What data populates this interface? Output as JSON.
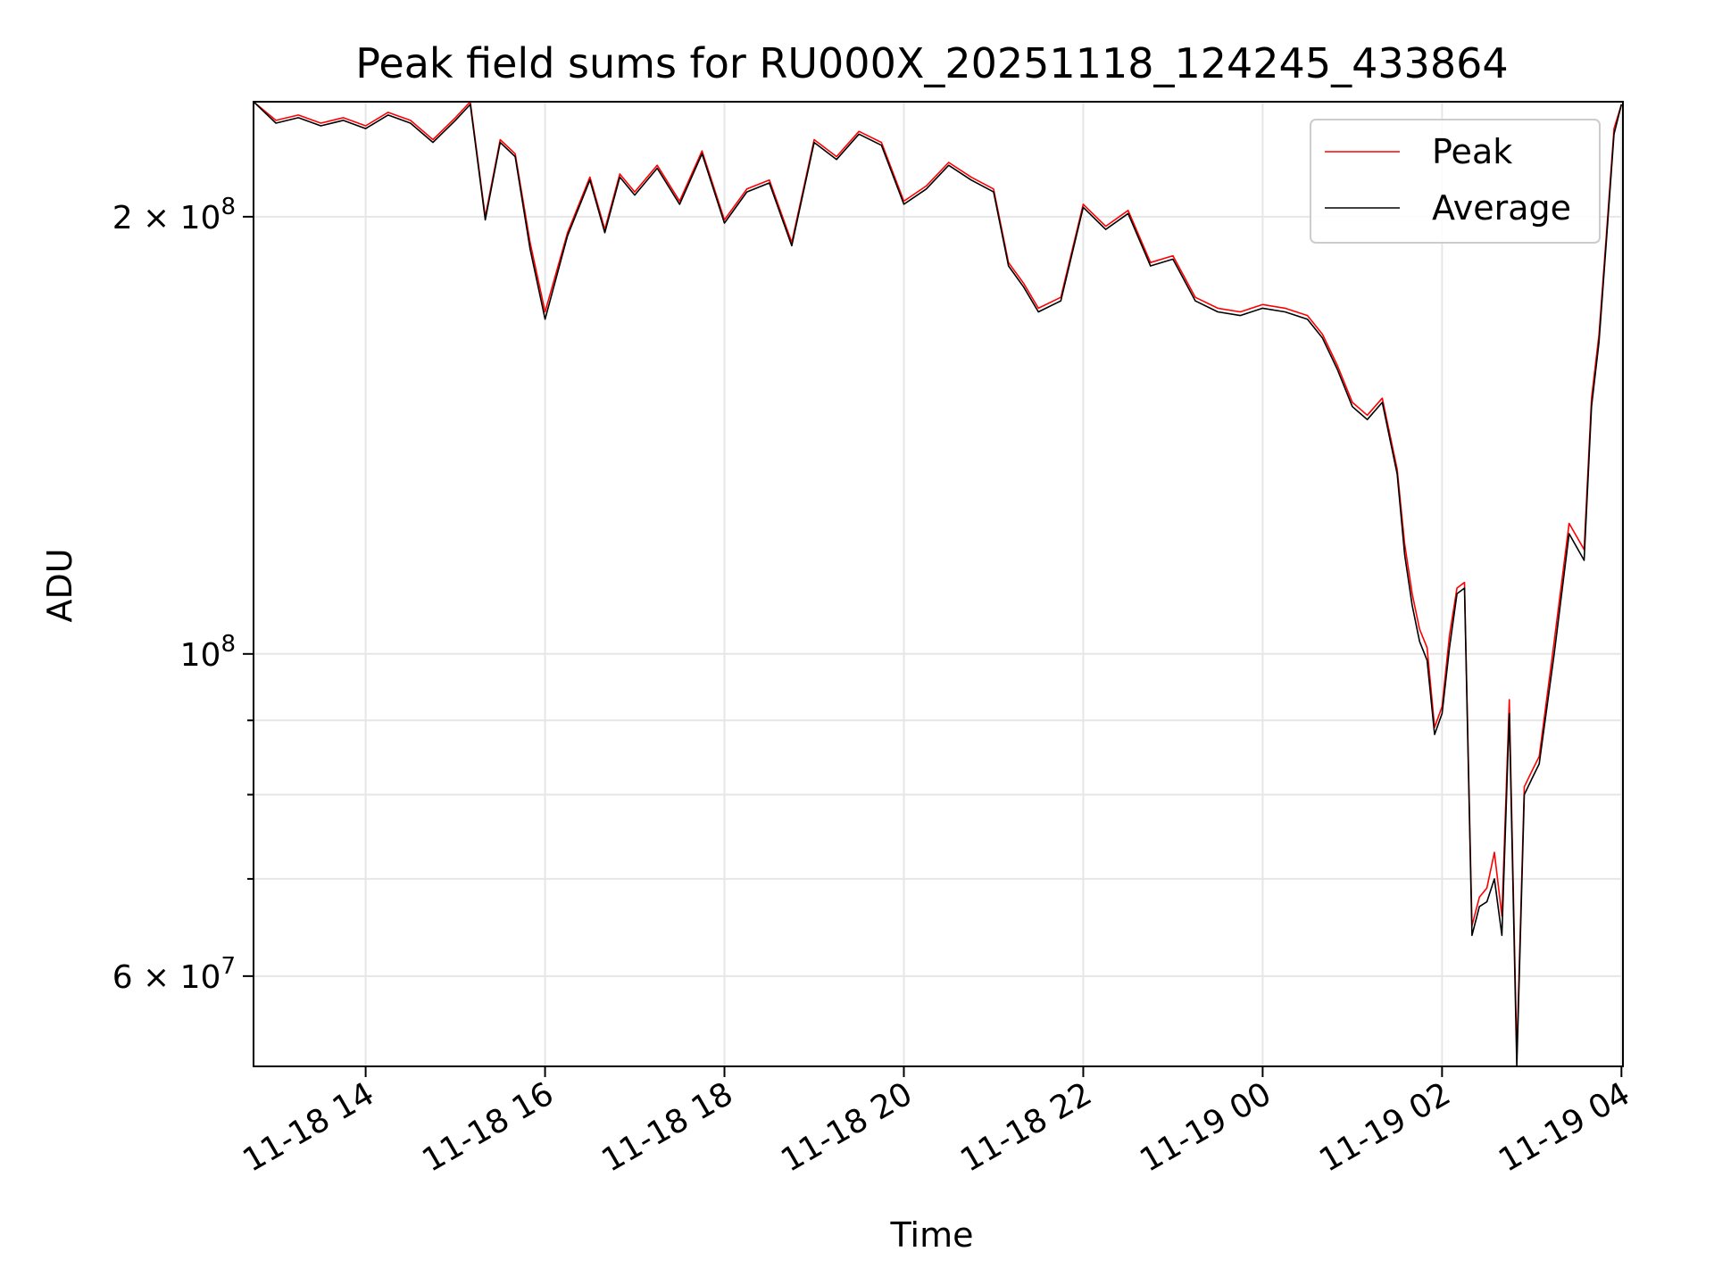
{
  "chart_data": {
    "type": "line",
    "title": "Peak field sums for RU000X_20251118_124245_433864",
    "xlabel": "Time",
    "ylabel": "ADU",
    "yscale": "log",
    "ylim": [
      52000000,
      240000000
    ],
    "xlim": [
      "2025-11-18 12:45",
      "2025-11-19 04:01"
    ],
    "x_ticks": [
      {
        "t": "2025-11-18 14:00",
        "label": "11-18 14"
      },
      {
        "t": "2025-11-18 16:00",
        "label": "11-18 16"
      },
      {
        "t": "2025-11-18 18:00",
        "label": "11-18 18"
      },
      {
        "t": "2025-11-18 20:00",
        "label": "11-18 20"
      },
      {
        "t": "2025-11-18 22:00",
        "label": "11-18 22"
      },
      {
        "t": "2025-11-19 00:00",
        "label": "11-19 00"
      },
      {
        "t": "2025-11-19 02:00",
        "label": "11-19 02"
      },
      {
        "t": "2025-11-19 04:00",
        "label": "11-19 04"
      }
    ],
    "y_ticks": [
      {
        "v": 60000000,
        "mantissa": "6",
        "exponent": "7"
      },
      {
        "v": 100000000,
        "mantissa": "",
        "exponent": "8"
      },
      {
        "v": 200000000,
        "mantissa": "2",
        "exponent": "8"
      }
    ],
    "y_minor_ticks": [
      70000000,
      80000000,
      90000000
    ],
    "grid": true,
    "legend_position": "top-right",
    "x": [
      "2025-11-18 12:45",
      "2025-11-18 13:00",
      "2025-11-18 13:15",
      "2025-11-18 13:30",
      "2025-11-18 13:45",
      "2025-11-18 14:00",
      "2025-11-18 14:15",
      "2025-11-18 14:30",
      "2025-11-18 14:45",
      "2025-11-18 15:00",
      "2025-11-18 15:10",
      "2025-11-18 15:20",
      "2025-11-18 15:30",
      "2025-11-18 15:40",
      "2025-11-18 15:50",
      "2025-11-18 16:00",
      "2025-11-18 16:15",
      "2025-11-18 16:30",
      "2025-11-18 16:40",
      "2025-11-18 16:50",
      "2025-11-18 17:00",
      "2025-11-18 17:15",
      "2025-11-18 17:30",
      "2025-11-18 17:45",
      "2025-11-18 18:00",
      "2025-11-18 18:15",
      "2025-11-18 18:30",
      "2025-11-18 18:45",
      "2025-11-18 19:00",
      "2025-11-18 19:15",
      "2025-11-18 19:30",
      "2025-11-18 19:45",
      "2025-11-18 20:00",
      "2025-11-18 20:15",
      "2025-11-18 20:30",
      "2025-11-18 20:45",
      "2025-11-18 21:00",
      "2025-11-18 21:10",
      "2025-11-18 21:20",
      "2025-11-18 21:30",
      "2025-11-18 21:45",
      "2025-11-18 22:00",
      "2025-11-18 22:15",
      "2025-11-18 22:30",
      "2025-11-18 22:45",
      "2025-11-18 23:00",
      "2025-11-18 23:15",
      "2025-11-18 23:30",
      "2025-11-18 23:45",
      "2025-11-19 00:00",
      "2025-11-19 00:15",
      "2025-11-19 00:30",
      "2025-11-19 00:40",
      "2025-11-19 00:50",
      "2025-11-19 01:00",
      "2025-11-19 01:10",
      "2025-11-19 01:20",
      "2025-11-19 01:30",
      "2025-11-19 01:35",
      "2025-11-19 01:40",
      "2025-11-19 01:45",
      "2025-11-19 01:50",
      "2025-11-19 01:55",
      "2025-11-19 02:00",
      "2025-11-19 02:05",
      "2025-11-19 02:10",
      "2025-11-19 02:15",
      "2025-11-19 02:20",
      "2025-11-19 02:25",
      "2025-11-19 02:30",
      "2025-11-19 02:35",
      "2025-11-19 02:40",
      "2025-11-19 02:45",
      "2025-11-19 02:50",
      "2025-11-19 02:55",
      "2025-11-19 03:00",
      "2025-11-19 03:05",
      "2025-11-19 03:15",
      "2025-11-19 03:25",
      "2025-11-19 03:35",
      "2025-11-19 03:40",
      "2025-11-19 03:45",
      "2025-11-19 03:50",
      "2025-11-19 03:55",
      "2025-11-19 04:00"
    ],
    "series": [
      {
        "name": "Peak",
        "color": "#ff0000",
        "values": [
          240000000,
          233000000,
          235000000,
          232000000,
          234000000,
          231000000,
          236000000,
          233000000,
          226000000,
          234000000,
          240000000,
          200000000,
          226000000,
          221000000,
          192000000,
          172000000,
          195000000,
          213000000,
          196000000,
          214000000,
          208000000,
          217000000,
          205000000,
          222000000,
          199000000,
          209000000,
          212000000,
          192000000,
          226000000,
          220000000,
          229000000,
          225000000,
          205000000,
          210000000,
          218000000,
          213000000,
          209000000,
          186000000,
          180000000,
          173000000,
          176000000,
          204000000,
          197000000,
          202000000,
          186000000,
          188000000,
          176000000,
          173000000,
          172000000,
          174000000,
          173000000,
          171000000,
          166000000,
          158000000,
          149000000,
          146000000,
          150000000,
          134000000,
          119000000,
          110000000,
          104000000,
          101000000,
          89000000,
          92000000,
          103000000,
          111000000,
          112000000,
          65000000,
          68000000,
          69000000,
          73000000,
          66000000,
          93000000,
          53000000,
          81000000,
          83000000,
          85000000,
          102000000,
          123000000,
          118000000,
          150000000,
          166000000,
          195000000,
          230000000,
          239000000
        ]
      },
      {
        "name": "Average",
        "color": "#000000",
        "values": [
          240000000,
          232000000,
          234000000,
          231000000,
          233000000,
          230000000,
          235000000,
          232000000,
          225000000,
          233000000,
          239000000,
          199000000,
          225000000,
          220000000,
          190000000,
          170000000,
          194000000,
          212000000,
          195000000,
          213000000,
          207000000,
          216000000,
          204000000,
          221000000,
          198000000,
          208000000,
          211000000,
          191000000,
          225000000,
          219000000,
          228000000,
          224000000,
          204000000,
          209000000,
          217000000,
          212000000,
          208000000,
          185000000,
          179000000,
          172000000,
          175000000,
          203000000,
          196000000,
          201000000,
          185000000,
          187000000,
          175000000,
          172000000,
          171000000,
          173000000,
          172000000,
          170000000,
          165000000,
          157000000,
          148000000,
          145000000,
          149000000,
          133000000,
          117000000,
          108000000,
          102000000,
          99000000,
          88000000,
          91000000,
          101000000,
          110000000,
          111000000,
          64000000,
          67000000,
          67500000,
          70000000,
          64000000,
          91000000,
          52000000,
          80000000,
          82000000,
          84000000,
          100000000,
          121000000,
          116000000,
          148000000,
          164000000,
          193000000,
          228000000,
          239000000
        ]
      }
    ]
  }
}
